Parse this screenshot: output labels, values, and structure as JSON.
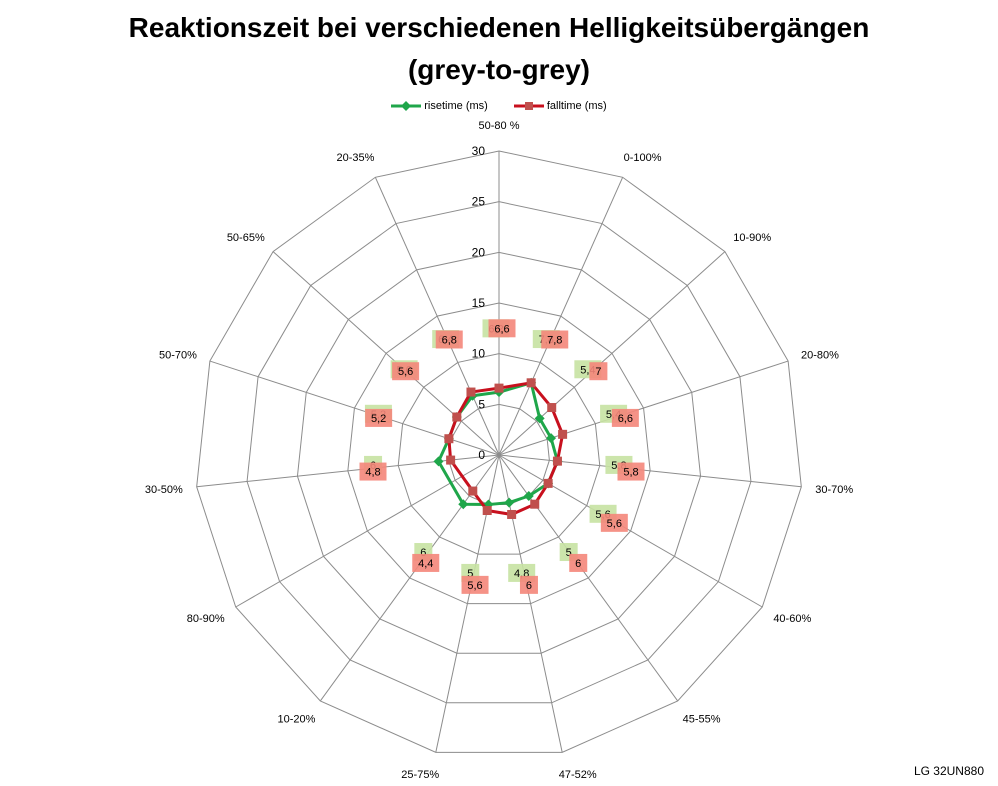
{
  "chart_data": {
    "type": "radar",
    "title": "Reaktionszeit bei verschiedenen Helligkeitsübergängen",
    "subtitle": "(grey-to-grey)",
    "categories": [
      "50-80 %",
      "0-100%",
      "10-90%",
      "20-80%",
      "30-70%",
      "40-60%",
      "45-55%",
      "47-52%",
      "25-75%",
      "10-20%",
      "80-90%",
      "30-50%",
      "50-70%",
      "50-65%",
      "20-35%"
    ],
    "rlim": [
      0,
      30
    ],
    "ticks": [
      0,
      5,
      10,
      15,
      20,
      25,
      30
    ],
    "grid": true,
    "legend_position": "top",
    "series": [
      {
        "name": "risetime (ms)",
        "color": "#1fa64a",
        "values": [
          6.2,
          7.8,
          5.4,
          5.4,
          5.8,
          5.6,
          5.0,
          4.8,
          5.0,
          6.0,
          null,
          6.0,
          5.2,
          5.6,
          6.4
        ],
        "labels": [
          "6,2",
          "7,8",
          "5,4",
          "5,4",
          "5,8",
          "5,6",
          "5",
          "4,8",
          "5",
          "6",
          "",
          "6",
          "5,2",
          "5,6",
          "6,4"
        ]
      },
      {
        "name": "falltime (ms)",
        "color": "#c8101e",
        "values": [
          6.6,
          7.8,
          7.0,
          6.6,
          5.8,
          5.6,
          6.0,
          6.0,
          5.6,
          4.4,
          null,
          4.8,
          5.2,
          5.6,
          6.8
        ],
        "labels": [
          "6,6",
          "7,8",
          "7",
          "6,6",
          "5,8",
          "5,6",
          "6",
          "6",
          "5,6",
          "4,4",
          "",
          "4,8",
          "5,2",
          "5,6",
          "6,8"
        ]
      }
    ]
  },
  "model_label": "LG 32UN880"
}
